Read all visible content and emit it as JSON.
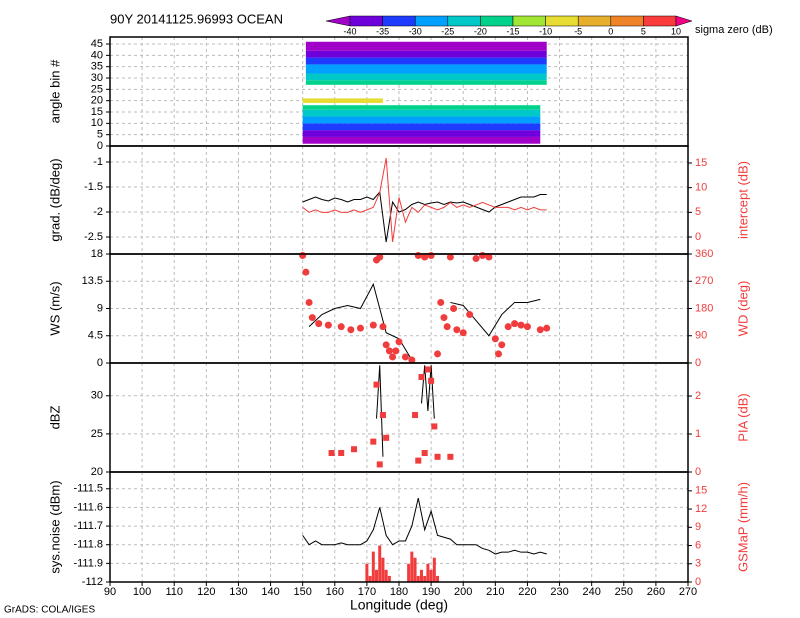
{
  "footer": "GrADS: COLA/IGES",
  "chart_data": [
    {
      "type": "heatmap",
      "title": "90Y 20141125.96993 OCEAN",
      "ylabel": "angle bin #",
      "ylim": [
        0,
        48.1
      ],
      "yticks": [
        0,
        5,
        10,
        15,
        20,
        25,
        30,
        35,
        40,
        45
      ],
      "grid": true,
      "colorbar": {
        "levels": [
          -40,
          -35,
          -30,
          -25,
          -20,
          -15,
          -10,
          -5,
          0,
          5,
          10
        ],
        "colors": [
          "#a000c8",
          "#6e00dc",
          "#1e3cff",
          "#00a0ff",
          "#00c8c8",
          "#00d28c",
          "#a0e632",
          "#e6dc32",
          "#e6af2d",
          "#f08228",
          "#fa3c3c",
          "#f00082"
        ],
        "label": "sigma zero (dB)"
      },
      "cells": [
        {
          "x": [
            150,
            224
          ],
          "y": [
            1,
            4
          ],
          "value": -42
        },
        {
          "x": [
            150,
            224
          ],
          "y": [
            4,
            7
          ],
          "value": -37
        },
        {
          "x": [
            150,
            224
          ],
          "y": [
            7,
            10
          ],
          "value": -33
        },
        {
          "x": [
            150,
            224
          ],
          "y": [
            10,
            13
          ],
          "value": -28
        },
        {
          "x": [
            150,
            224
          ],
          "y": [
            13,
            16
          ],
          "value": -23
        },
        {
          "x": [
            150,
            224
          ],
          "y": [
            16,
            18
          ],
          "value": -18
        },
        {
          "x": [
            150,
            175
          ],
          "y": [
            19,
            21
          ],
          "value": -7
        },
        {
          "x": [
            151,
            226
          ],
          "y": [
            27,
            29
          ],
          "value": -18
        },
        {
          "x": [
            151,
            226
          ],
          "y": [
            29,
            32
          ],
          "value": -23
        },
        {
          "x": [
            151,
            226
          ],
          "y": [
            32,
            36
          ],
          "value": -28
        },
        {
          "x": [
            151,
            226
          ],
          "y": [
            36,
            39
          ],
          "value": -33
        },
        {
          "x": [
            151,
            226
          ],
          "y": [
            39,
            42
          ],
          "value": -37
        },
        {
          "x": [
            151,
            226
          ],
          "y": [
            42,
            46
          ],
          "value": -42
        }
      ]
    },
    {
      "type": "line",
      "ylabel": "grad. (dB/deg)",
      "y2label": "intercept (dB)",
      "ylim": [
        -2.84,
        -0.68
      ],
      "yticks": [
        -2.5,
        -2,
        -1.5,
        -1
      ],
      "y2lim": [
        -3.45,
        18.45
      ],
      "y2ticks": [
        0,
        5,
        10,
        15
      ],
      "grid": true,
      "x": [
        150,
        152,
        154,
        156,
        158,
        160,
        162,
        164,
        166,
        168,
        170,
        172,
        174,
        176,
        178,
        180,
        182,
        184,
        186,
        188,
        190,
        192,
        194,
        196,
        198,
        200,
        202,
        204,
        206,
        208,
        210,
        212,
        214,
        216,
        218,
        220,
        222,
        224,
        226
      ],
      "series": [
        {
          "color": "#000000",
          "style": "line",
          "values": [
            -1.8,
            -1.75,
            -1.7,
            -1.75,
            -1.78,
            -1.72,
            -1.75,
            -1.8,
            -1.75,
            -1.75,
            -1.7,
            -1.75,
            -1.6,
            -2.6,
            -1.8,
            -2.0,
            -1.95,
            -1.85,
            -1.8,
            -1.85,
            -1.82,
            -1.8,
            -1.85,
            -1.8,
            -1.82,
            -1.8,
            -1.85,
            -1.9,
            -1.95,
            -2.0,
            -1.9,
            -1.85,
            -1.8,
            -1.75,
            -1.7,
            -1.7,
            -1.7,
            -1.65,
            -1.65
          ]
        },
        {
          "color": "#f03c3c",
          "style": "line",
          "axis": "y2",
          "values": [
            6,
            5,
            5.5,
            5,
            5,
            5.5,
            5,
            5,
            5.5,
            5,
            5.5,
            6,
            9,
            16,
            -1,
            8,
            3,
            6,
            5,
            6.5,
            6,
            5.5,
            6,
            7,
            6,
            6.5,
            6,
            6.5,
            7,
            6.5,
            6,
            6,
            6,
            5.5,
            6,
            5.5,
            6,
            5.5,
            5.5
          ]
        }
      ]
    },
    {
      "type": "line",
      "ylabel": "WS (m/s)",
      "y2label": "WD (deg)",
      "ylim": [
        0,
        18
      ],
      "yticks": [
        0,
        4.5,
        9,
        13.5,
        18
      ],
      "y2lim": [
        0,
        360
      ],
      "y2ticks": [
        0,
        90,
        180,
        270,
        360
      ],
      "grid": true,
      "x": [
        152,
        156,
        160,
        164,
        168,
        172,
        176,
        180,
        184,
        188,
        192,
        196,
        200,
        204,
        208,
        212,
        216,
        220,
        224
      ],
      "series": [
        {
          "color": "#000000",
          "style": "line",
          "values": [
            6,
            8,
            9,
            9.5,
            9,
            13,
            5,
            4,
            0.5,
            null,
            null,
            10,
            9.5,
            7,
            4.5,
            8,
            10,
            10,
            10.5
          ]
        },
        {
          "color": "#f03c3c",
          "style": "dot",
          "axis": "y2",
          "x": [
            150,
            151,
            152,
            153,
            155,
            158,
            162,
            165,
            168,
            172,
            173,
            174,
            175,
            176,
            177,
            178,
            179,
            180,
            182,
            184,
            186,
            188,
            190,
            192,
            193,
            194,
            195,
            196,
            197,
            198,
            200,
            202,
            204,
            206,
            208,
            210,
            211,
            212,
            214,
            216,
            218,
            220,
            224,
            226
          ],
          "values": [
            355,
            300,
            200,
            150,
            130,
            125,
            120,
            110,
            115,
            125,
            340,
            350,
            120,
            60,
            40,
            20,
            40,
            70,
            20,
            10,
            355,
            350,
            355,
            30,
            200,
            150,
            120,
            350,
            180,
            110,
            100,
            160,
            345,
            355,
            350,
            80,
            30,
            60,
            120,
            130,
            125,
            120,
            110,
            115
          ]
        }
      ]
    },
    {
      "type": "line",
      "ylabel": "dBZ",
      "y2label": "PIA (dB)",
      "ylim": [
        20,
        34.3
      ],
      "yticks": [
        20,
        25,
        30
      ],
      "y2lim": [
        0,
        2.87
      ],
      "y2ticks": [
        0,
        1,
        2
      ],
      "grid": true,
      "x": [
        172,
        173,
        174,
        175,
        176,
        177,
        186,
        187,
        188,
        189,
        190,
        191,
        192
      ],
      "series": [
        {
          "color": "#000000",
          "style": "line",
          "values": [
            null,
            27,
            34,
            22,
            null,
            null,
            null,
            29,
            34,
            28,
            34,
            27,
            null
          ]
        },
        {
          "color": "#f03c3c",
          "style": "square",
          "axis": "y2",
          "x": [
            159,
            162,
            166,
            172,
            173,
            174,
            175,
            176,
            185,
            186,
            187,
            188,
            189,
            190,
            191,
            192,
            196
          ],
          "values": [
            0.5,
            0.5,
            0.6,
            0.8,
            2.3,
            0.2,
            1.5,
            0.9,
            1.5,
            0.3,
            2.5,
            0.5,
            2.7,
            2.4,
            1.2,
            0.4,
            0.4
          ]
        }
      ]
    },
    {
      "type": "line",
      "ylabel": "sys.noise (dBm)",
      "y2label": "GSMaP (mm/h)",
      "ylim": [
        -112,
        -111.41
      ],
      "yticks": [
        -112,
        -111.9,
        -111.8,
        -111.7,
        -111.6,
        -111.5
      ],
      "y2lim": [
        0,
        18.1
      ],
      "y2ticks": [
        0,
        3,
        6,
        9,
        12,
        15
      ],
      "grid": true,
      "xlim": [
        90,
        270
      ],
      "xticks": [
        90,
        100,
        110,
        120,
        130,
        140,
        150,
        160,
        170,
        180,
        190,
        200,
        210,
        220,
        230,
        240,
        250,
        260,
        270
      ],
      "xlabel": "Longitude (deg)",
      "x": [
        150,
        152,
        154,
        156,
        158,
        160,
        162,
        164,
        166,
        168,
        170,
        172,
        174,
        176,
        178,
        180,
        182,
        184,
        186,
        188,
        190,
        192,
        194,
        196,
        198,
        200,
        202,
        204,
        206,
        208,
        210,
        212,
        214,
        216,
        218,
        220,
        222,
        224,
        226
      ],
      "series": [
        {
          "color": "#000000",
          "style": "line",
          "values": [
            -111.75,
            -111.8,
            -111.78,
            -111.8,
            -111.8,
            -111.8,
            -111.79,
            -111.8,
            -111.8,
            -111.8,
            -111.78,
            -111.72,
            -111.6,
            -111.75,
            -111.8,
            -111.78,
            -111.78,
            -111.7,
            -111.55,
            -111.72,
            -111.62,
            -111.75,
            -111.76,
            -111.77,
            -111.8,
            -111.8,
            -111.8,
            -111.8,
            -111.82,
            -111.83,
            -111.85,
            -111.84,
            -111.84,
            -111.83,
            -111.84,
            -111.84,
            -111.85,
            -111.84,
            -111.85
          ]
        },
        {
          "color": "#f03c3c",
          "style": "bar",
          "axis": "y2",
          "x": [
            170,
            171,
            172,
            173,
            174,
            175,
            176,
            177,
            183,
            184,
            185,
            186,
            187,
            188,
            189,
            190,
            191,
            192
          ],
          "values": [
            3,
            1,
            5,
            2,
            6,
            4,
            2,
            1,
            3,
            5,
            4,
            1,
            2,
            1,
            3,
            2,
            4,
            1
          ]
        }
      ]
    }
  ]
}
